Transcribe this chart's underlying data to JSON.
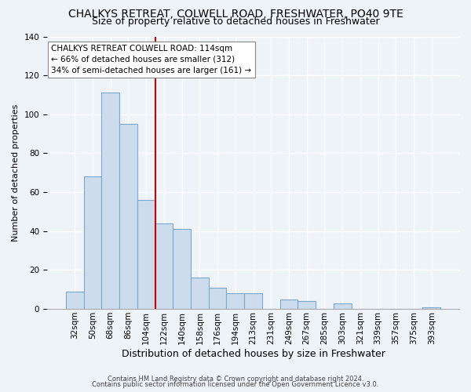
{
  "title": "CHALKYS RETREAT, COLWELL ROAD, FRESHWATER, PO40 9TE",
  "subtitle": "Size of property relative to detached houses in Freshwater",
  "xlabel": "Distribution of detached houses by size in Freshwater",
  "ylabel": "Number of detached properties",
  "bar_labels": [
    "32sqm",
    "50sqm",
    "68sqm",
    "86sqm",
    "104sqm",
    "122sqm",
    "140sqm",
    "158sqm",
    "176sqm",
    "194sqm",
    "213sqm",
    "231sqm",
    "249sqm",
    "267sqm",
    "285sqm",
    "303sqm",
    "321sqm",
    "339sqm",
    "357sqm",
    "375sqm",
    "393sqm"
  ],
  "bar_values": [
    9,
    68,
    111,
    95,
    56,
    44,
    41,
    16,
    11,
    8,
    8,
    0,
    5,
    4,
    0,
    3,
    0,
    0,
    0,
    0,
    1
  ],
  "bar_color": "#ccdcec",
  "bar_edgecolor": "#7aa8cc",
  "vline_x_index": 5,
  "vline_color": "#cc0000",
  "ylim": [
    0,
    140
  ],
  "annotation_text": "CHALKYS RETREAT COLWELL ROAD: 114sqm\n← 66% of detached houses are smaller (312)\n34% of semi-detached houses are larger (161) →",
  "footer_line1": "Contains HM Land Registry data © Crown copyright and database right 2024.",
  "footer_line2": "Contains public sector information licensed under the Open Government Licence v3.0.",
  "background_color": "#eef3f8",
  "plot_bg_color": "#eef3f8",
  "grid_color": "#ffffff",
  "title_fontsize": 10,
  "subtitle_fontsize": 9,
  "ylabel_fontsize": 8,
  "xlabel_fontsize": 9,
  "tick_fontsize": 7.5,
  "annotation_fontsize": 7.5,
  "footer_fontsize": 6
}
